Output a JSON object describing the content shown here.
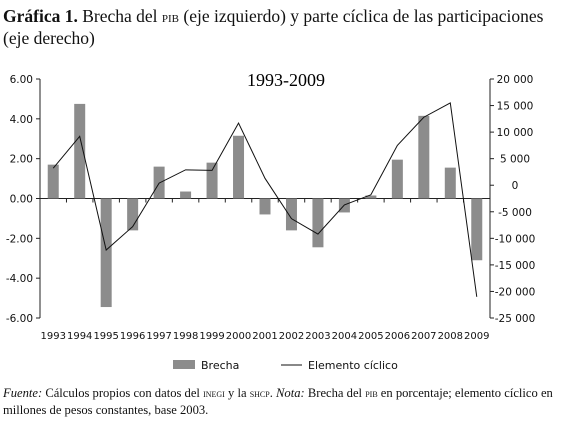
{
  "header": {
    "lead": "Gráfica 1.",
    "part1": " Brecha del ",
    "pib": "pib",
    "part2": " (eje izquierdo) y parte cíclica de las participaciones (eje derecho)"
  },
  "chart_data": {
    "type": "bar",
    "subtitle": "1993-2009",
    "categories": [
      "1993",
      "1994",
      "1995",
      "1996",
      "1997",
      "1998",
      "1999",
      "2000",
      "2001",
      "2002",
      "2003",
      "2004",
      "2005",
      "2006",
      "2007",
      "2008",
      "2009"
    ],
    "series": [
      {
        "name": "Brecha",
        "axis": "left",
        "type": "bar",
        "color": "#8c8c8c",
        "values": [
          1.7,
          4.75,
          -5.45,
          -1.6,
          1.6,
          0.35,
          1.8,
          3.15,
          -0.8,
          -1.6,
          -2.45,
          -0.7,
          0.15,
          1.95,
          4.15,
          1.55,
          -3.1
        ]
      },
      {
        "name": "Elemento cíclico",
        "axis": "right",
        "type": "line",
        "color": "#111111",
        "values": [
          3200,
          9200,
          -12200,
          -7800,
          400,
          2900,
          2800,
          11700,
          1300,
          -6300,
          -9200,
          -3700,
          -1800,
          7500,
          12800,
          15500,
          -21000
        ]
      }
    ],
    "left_axis": {
      "min": -6,
      "max": 6,
      "step": 2,
      "tick_labels": [
        "6.00",
        "4.00",
        "2.00",
        "0.00",
        "-2.00",
        "-4.00",
        "-6.00"
      ]
    },
    "right_axis": {
      "min": -25000,
      "max": 20000,
      "step": 5000,
      "tick_labels": [
        "20 000",
        "15 000",
        "10 000",
        "5 000",
        "0",
        "-5 000",
        "-10 000",
        "-15 000",
        "-20 000",
        "-25 000"
      ]
    },
    "grid": false,
    "legend_position": "bottom"
  },
  "footnote": {
    "fuente_label": "Fuente:",
    "fuente_a": " Cálculos propios con datos del ",
    "inegi": "inegi",
    "fuente_b": " y la ",
    "shcp": "shcp",
    "fuente_c": ". ",
    "nota_label": "Nota:",
    "nota_a": " Brecha del ",
    "pib": "pib",
    "nota_b": " en porcentaje; elemento cíclico en millones de pesos constantes, base 2003."
  }
}
